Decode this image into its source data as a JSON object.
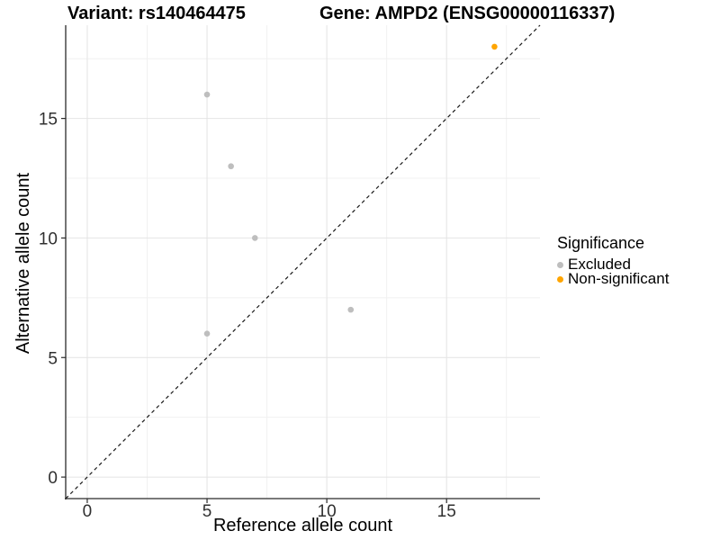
{
  "chart_data": {
    "type": "scatter",
    "title_left": "Variant: rs140464475",
    "title_right": "Gene: AMPD2 (ENSG00000116337)",
    "xlabel": "Reference allele count",
    "ylabel": "Alternative allele count",
    "xlim": [
      -0.9,
      18.9
    ],
    "ylim": [
      -0.9,
      18.9
    ],
    "x_ticks": [
      0,
      5,
      10,
      15
    ],
    "y_ticks": [
      0,
      5,
      10,
      15
    ],
    "x_minor_ticks": [
      2.5,
      7.5,
      12.5,
      17.5
    ],
    "y_minor_ticks": [
      2.5,
      7.5,
      12.5,
      17.5
    ],
    "grid": true,
    "identity_line": {
      "type": "dashed",
      "equation": "y = x"
    },
    "series": [
      {
        "name": "Excluded",
        "color": "#BEBEBE",
        "points": [
          [
            5,
            16
          ],
          [
            6,
            13
          ],
          [
            7,
            10
          ],
          [
            5,
            6
          ],
          [
            11,
            7
          ]
        ]
      },
      {
        "name": "Non-significant",
        "color": "#FFA500",
        "points": [
          [
            17,
            18
          ]
        ]
      }
    ],
    "legend": {
      "title": "Significance",
      "position": "right"
    }
  },
  "style_colors": {
    "axis_line": "#2b2b2b",
    "tick_label": "#303030",
    "grid_major": "#e4e4e4",
    "grid_minor": "#f1f1f1",
    "identity_line": "#1a1a1a"
  }
}
